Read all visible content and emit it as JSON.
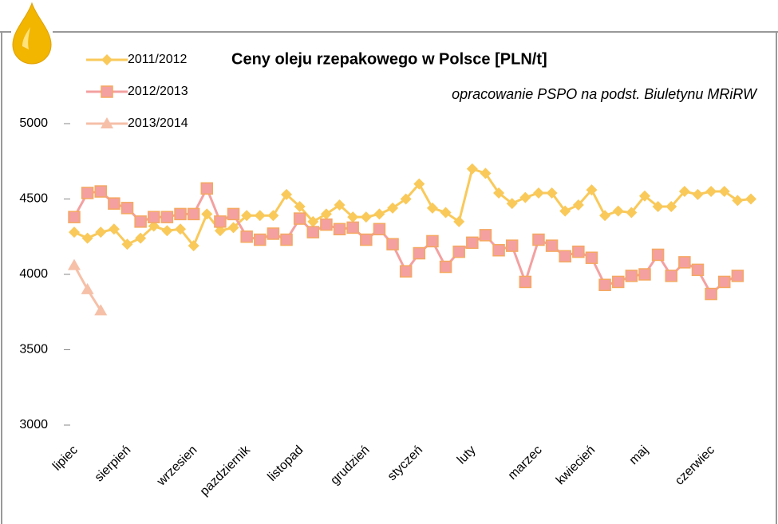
{
  "chart_data": {
    "type": "line",
    "title": "Ceny oleju rzepakowego w Polsce [PLN/t]",
    "subtitle": "opracowanie PSPO na podst. Biuletynu MRiRW",
    "categories": [
      "lipiec",
      null,
      null,
      null,
      "sierpień",
      null,
      null,
      null,
      null,
      "wrzesien",
      null,
      null,
      null,
      "pazdziernik",
      null,
      null,
      null,
      "listopad",
      null,
      null,
      null,
      null,
      "grudzień",
      null,
      null,
      null,
      "styczeń",
      null,
      null,
      null,
      "luty",
      null,
      null,
      null,
      null,
      "marzec",
      null,
      null,
      null,
      "kwiecień",
      null,
      null,
      null,
      "maj",
      null,
      null,
      null,
      null,
      "czerwiec",
      null,
      null,
      null
    ],
    "series": [
      {
        "name": "2011/2012",
        "color": "#f9c95a",
        "marker": "diamond",
        "values": [
          4280,
          4240,
          4280,
          4300,
          4200,
          4240,
          4320,
          4290,
          4300,
          4190,
          4400,
          4290,
          4310,
          4390,
          4390,
          4390,
          4530,
          4450,
          4350,
          4400,
          4460,
          4380,
          4380,
          4400,
          4440,
          4500,
          4600,
          4440,
          4410,
          4350,
          4700,
          4670,
          4540,
          4470,
          4510,
          4540,
          4540,
          4420,
          4460,
          4560,
          4390,
          4420,
          4410,
          4520,
          4450,
          4450,
          4550,
          4530,
          4550,
          4550,
          4490,
          4500
        ]
      },
      {
        "name": "2012/2013",
        "color": "#f4a0a0",
        "marker": "square",
        "values": [
          4380,
          4540,
          4550,
          4470,
          4440,
          4350,
          4380,
          4380,
          4400,
          4400,
          4570,
          4350,
          4400,
          4250,
          4230,
          4270,
          4230,
          4370,
          4280,
          4330,
          4300,
          4310,
          4230,
          4300,
          4200,
          4020,
          4140,
          4220,
          4050,
          4150,
          4210,
          4260,
          4160,
          4190,
          3950,
          4230,
          4190,
          4120,
          4150,
          4110,
          3930,
          3950,
          3990,
          4000,
          4130,
          3990,
          4080,
          4030,
          3870,
          3950,
          3990,
          null
        ]
      },
      {
        "name": "2013/2014",
        "color": "#f6c0a8",
        "marker": "triangle",
        "values": [
          4060,
          3900,
          3760,
          null,
          null,
          null,
          null,
          null,
          null,
          null,
          null,
          null,
          null,
          null,
          null,
          null,
          null,
          null,
          null,
          null,
          null,
          null,
          null,
          null,
          null,
          null,
          null,
          null,
          null,
          null,
          null,
          null,
          null,
          null,
          null,
          null,
          null,
          null,
          null,
          null,
          null,
          null,
          null,
          null,
          null,
          null,
          null,
          null,
          null,
          null,
          null,
          null
        ]
      }
    ],
    "ylim": [
      3000,
      5000
    ],
    "yticks": [
      3000,
      3500,
      4000,
      4500,
      5000
    ],
    "grid": false,
    "legend": "top-left"
  }
}
